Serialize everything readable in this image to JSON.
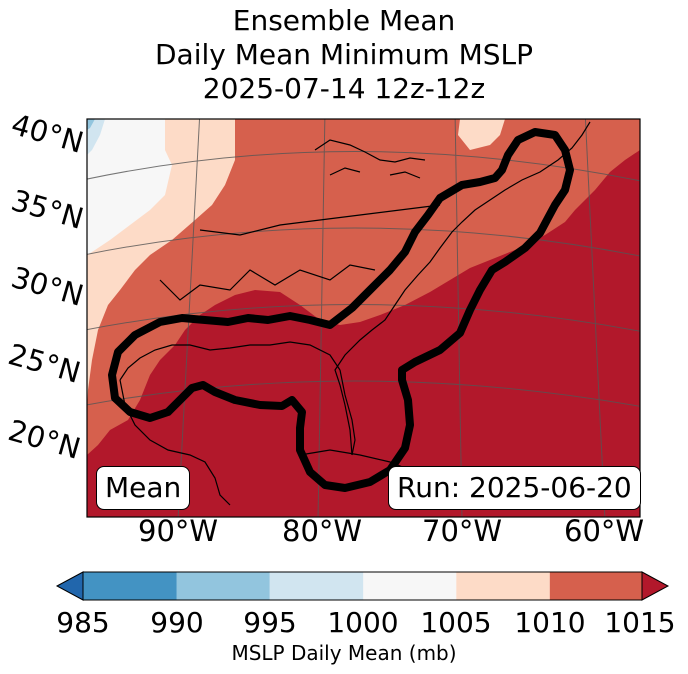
{
  "title": {
    "line1": "Ensemble Mean",
    "line2": "Daily Mean Minimum MSLP",
    "line3": "2025-07-14 12z-12z"
  },
  "map": {
    "region": "Eastern United States, Gulf of Mexico and western Atlantic",
    "lat_labels": [
      "40°N",
      "35°N",
      "30°N",
      "25°N",
      "20°N"
    ],
    "lon_labels": [
      "90°W",
      "80°W",
      "70°W",
      "60°W"
    ],
    "left_box": "Mean",
    "right_box": "Run: 2025-06-20",
    "contour_description": "black outline enclosing Gulf Coast and US East Coast",
    "fill_colors": {
      "985-990": "#3a86be",
      "990-995": "#93c4df",
      "995-1000": "#d1e5f0",
      "1000-1005": "#f7f7f7",
      "1005-1010": "#fddbc7",
      "1010-1015": "#d6604d",
      "1015+": "#b2182b",
      "below985": "#2166ac"
    }
  },
  "colorbar": {
    "ticks": [
      "985",
      "990",
      "995",
      "1000",
      "1005",
      "1010",
      "1015"
    ],
    "label": "MSLP Daily Mean (mb)",
    "bins": [
      {
        "range": "<985",
        "color": "#2166ac"
      },
      {
        "range": "985-990",
        "color": "#4393c3"
      },
      {
        "range": "990-995",
        "color": "#92c5de"
      },
      {
        "range": "995-1000",
        "color": "#d1e5f0"
      },
      {
        "range": "1000-1005",
        "color": "#f7f7f7"
      },
      {
        "range": "1005-1010",
        "color": "#fddbc7"
      },
      {
        "range": "1010-1015",
        "color": "#d6604d"
      },
      {
        "range": ">1015",
        "color": "#b2182b"
      }
    ]
  }
}
